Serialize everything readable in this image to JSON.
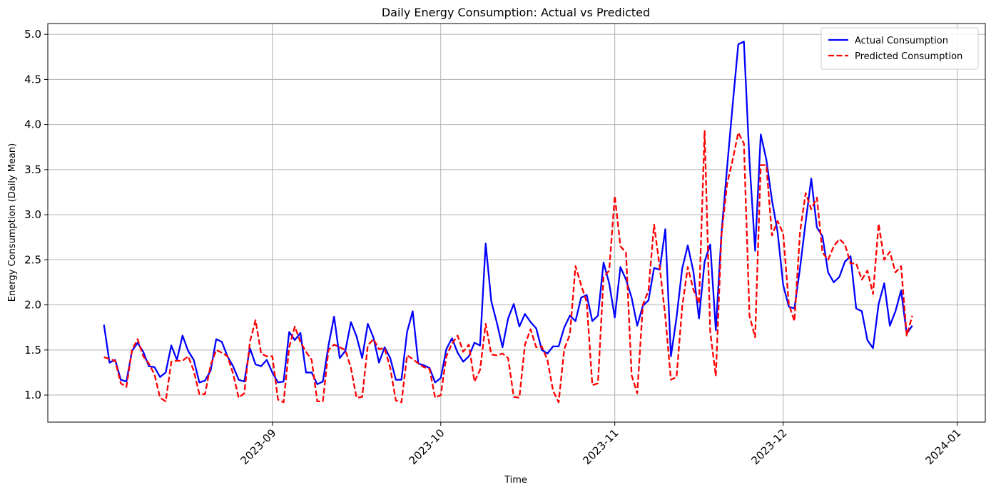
{
  "chart_data": {
    "type": "line",
    "title": "Daily Energy Consumption: Actual vs Predicted",
    "xlabel": "Time",
    "ylabel": "Energy Consumption (Daily Mean)",
    "x_start": "2023-08-02",
    "x_end": "2023-12-31",
    "xlim": [
      "2023-07-23",
      "2024-01-06"
    ],
    "ylim": [
      0.7,
      5.12
    ],
    "x_ticks": [
      "2023-09",
      "2023-10",
      "2023-11",
      "2023-12",
      "2024-01"
    ],
    "y_ticks": [
      1.0,
      1.5,
      2.0,
      2.5,
      3.0,
      3.5,
      4.0,
      4.5,
      5.0
    ],
    "grid": true,
    "legend_position": "top-right",
    "series": [
      {
        "name": "Actual Consumption",
        "color": "#0000ff",
        "style": "solid",
        "values": [
          1.78,
          1.36,
          1.39,
          1.17,
          1.15,
          1.49,
          1.58,
          1.48,
          1.32,
          1.31,
          1.2,
          1.25,
          1.55,
          1.39,
          1.66,
          1.49,
          1.39,
          1.14,
          1.16,
          1.27,
          1.62,
          1.59,
          1.43,
          1.32,
          1.17,
          1.15,
          1.52,
          1.34,
          1.32,
          1.39,
          1.25,
          1.14,
          1.15,
          1.7,
          1.61,
          1.69,
          1.25,
          1.25,
          1.12,
          1.15,
          1.55,
          1.87,
          1.41,
          1.49,
          1.81,
          1.65,
          1.41,
          1.79,
          1.64,
          1.36,
          1.53,
          1.41,
          1.17,
          1.17,
          1.7,
          1.93,
          1.35,
          1.33,
          1.3,
          1.14,
          1.19,
          1.51,
          1.63,
          1.47,
          1.37,
          1.43,
          1.58,
          1.55,
          2.68,
          2.04,
          1.8,
          1.53,
          1.85,
          2.01,
          1.76,
          1.9,
          1.81,
          1.74,
          1.5,
          1.46,
          1.54,
          1.54,
          1.75,
          1.88,
          1.82,
          2.08,
          2.11,
          1.82,
          1.88,
          2.47,
          2.24,
          1.86,
          2.42,
          2.28,
          2.08,
          1.77,
          1.99,
          2.05,
          2.41,
          2.39,
          2.84,
          1.43,
          1.86,
          2.4,
          2.66,
          2.37,
          1.85,
          2.48,
          2.67,
          1.72,
          2.79,
          3.52,
          4.22,
          4.89,
          4.92,
          3.59,
          2.6,
          3.89,
          3.61,
          3.16,
          2.81,
          2.22,
          1.98,
          1.96,
          2.41,
          2.92,
          3.4,
          2.86,
          2.76,
          2.36,
          2.25,
          2.31,
          2.48,
          2.54,
          1.96,
          1.93,
          1.61,
          1.52,
          2.01,
          2.24,
          1.77,
          1.93,
          2.16,
          1.68,
          1.77
        ]
      },
      {
        "name": "Predicted Consumption",
        "color": "#ff0000",
        "style": "dashed",
        "values": [
          1.42,
          1.4,
          1.38,
          1.13,
          1.09,
          1.5,
          1.62,
          1.43,
          1.35,
          1.23,
          0.97,
          0.93,
          1.37,
          1.38,
          1.38,
          1.43,
          1.27,
          1.01,
          1.01,
          1.33,
          1.5,
          1.47,
          1.43,
          1.24,
          0.97,
          1.02,
          1.59,
          1.83,
          1.46,
          1.43,
          1.43,
          0.95,
          0.92,
          1.53,
          1.76,
          1.59,
          1.48,
          1.39,
          0.93,
          0.93,
          1.5,
          1.56,
          1.53,
          1.5,
          1.3,
          0.97,
          0.98,
          1.55,
          1.62,
          1.51,
          1.52,
          1.3,
          0.94,
          0.92,
          1.44,
          1.4,
          1.35,
          1.31,
          1.29,
          0.97,
          1.0,
          1.43,
          1.57,
          1.66,
          1.48,
          1.56,
          1.15,
          1.28,
          1.79,
          1.45,
          1.44,
          1.46,
          1.41,
          0.98,
          0.97,
          1.56,
          1.73,
          1.53,
          1.54,
          1.39,
          1.05,
          0.92,
          1.51,
          1.67,
          2.43,
          2.22,
          2.03,
          1.11,
          1.13,
          2.31,
          2.38,
          3.21,
          2.65,
          2.58,
          1.22,
          1.02,
          2.0,
          2.16,
          2.89,
          2.42,
          1.87,
          1.17,
          1.2,
          1.97,
          2.42,
          2.17,
          2.02,
          3.93,
          1.7,
          1.21,
          2.77,
          3.34,
          3.61,
          3.91,
          3.79,
          1.88,
          1.64,
          3.55,
          3.55,
          2.77,
          2.93,
          2.79,
          2.01,
          1.82,
          2.81,
          3.24,
          3.06,
          3.19,
          2.58,
          2.5,
          2.65,
          2.73,
          2.67,
          2.46,
          2.46,
          2.28,
          2.38,
          2.12,
          2.9,
          2.5,
          2.59,
          2.36,
          2.43,
          1.66,
          1.88
        ]
      }
    ]
  }
}
